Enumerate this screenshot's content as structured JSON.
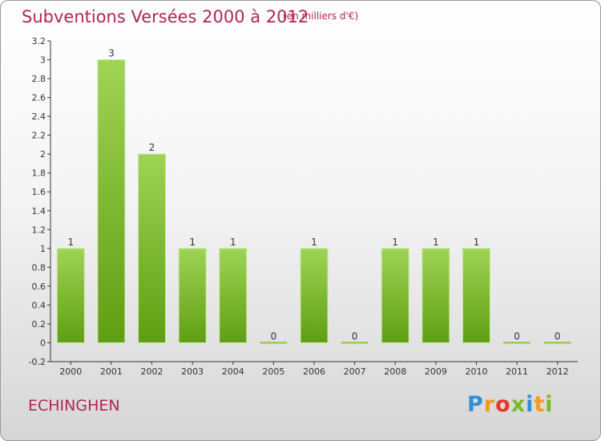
{
  "title": "Subventions Versées 2000 à 2012",
  "subtitle": "(en milliers d'€)",
  "commune": "ECHINGHEN",
  "logo": {
    "letters": [
      "P",
      "r",
      "o",
      "x",
      "i",
      "t",
      "i"
    ],
    "colors": [
      "#2f8fd8",
      "#f29a1c",
      "#e8372b",
      "#7ab929",
      "#2f8fd8",
      "#f29a1c",
      "#7ab929"
    ]
  },
  "colors": {
    "bar_top": "#9fd455",
    "bar_bottom": "#5f9e12",
    "title": "#b0245a"
  },
  "chart_data": {
    "type": "bar",
    "categories": [
      "2000",
      "2001",
      "2002",
      "2003",
      "2004",
      "2005",
      "2006",
      "2007",
      "2008",
      "2009",
      "2010",
      "2011",
      "2012"
    ],
    "values": [
      1,
      3,
      2,
      1,
      1,
      0,
      1,
      0,
      1,
      1,
      1,
      0,
      0
    ],
    "data_labels": [
      "1",
      "3",
      "2",
      "1",
      "1",
      "0",
      "1",
      "0",
      "1",
      "1",
      "1",
      "0",
      "0"
    ],
    "y_ticks": [
      "-0.2",
      "0",
      "0.2",
      "0.4",
      "0.6",
      "0.8",
      "1",
      "1.2",
      "1.4",
      "1.6",
      "1.8",
      "2",
      "2.2",
      "2.4",
      "2.6",
      "2.8",
      "3",
      "3.2"
    ],
    "ylim": [
      -0.2,
      3.2
    ],
    "grid": false
  }
}
